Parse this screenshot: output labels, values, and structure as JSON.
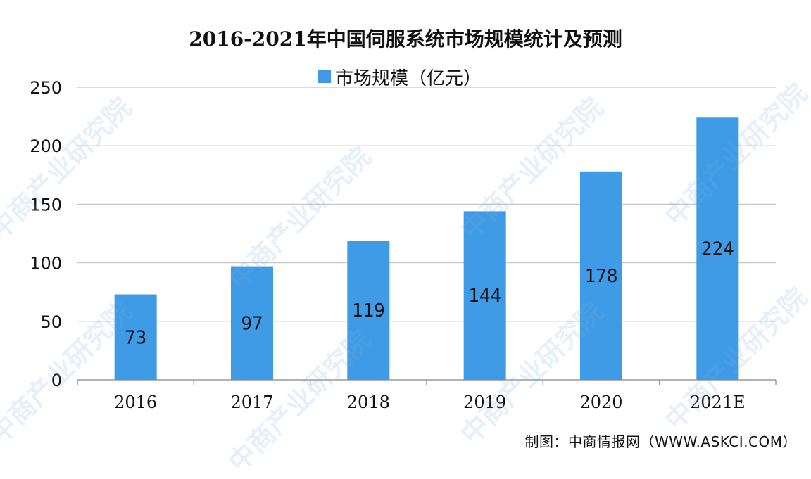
{
  "chart_data": {
    "type": "bar",
    "title": "2016-2021年中国伺服系统市场规模统计及预测",
    "series": [
      {
        "name": "市场规模（亿元）",
        "values": [
          73,
          97,
          119,
          144,
          178,
          224
        ]
      }
    ],
    "categories": [
      "2016",
      "2017",
      "2018",
      "2019",
      "2020",
      "2021E"
    ],
    "data_labels": [
      "73",
      "97",
      "119",
      "144",
      "178",
      "224"
    ],
    "yticks": [
      "0",
      "50",
      "100",
      "150",
      "200",
      "250"
    ],
    "ylim": [
      0,
      250
    ],
    "grid": true,
    "legend_position": "top-center",
    "bar_color": "#3f9be5"
  },
  "source_note": "制图：中商情报网（WWW.ASKCI.COM）",
  "watermark_text": "中商产业研究院"
}
